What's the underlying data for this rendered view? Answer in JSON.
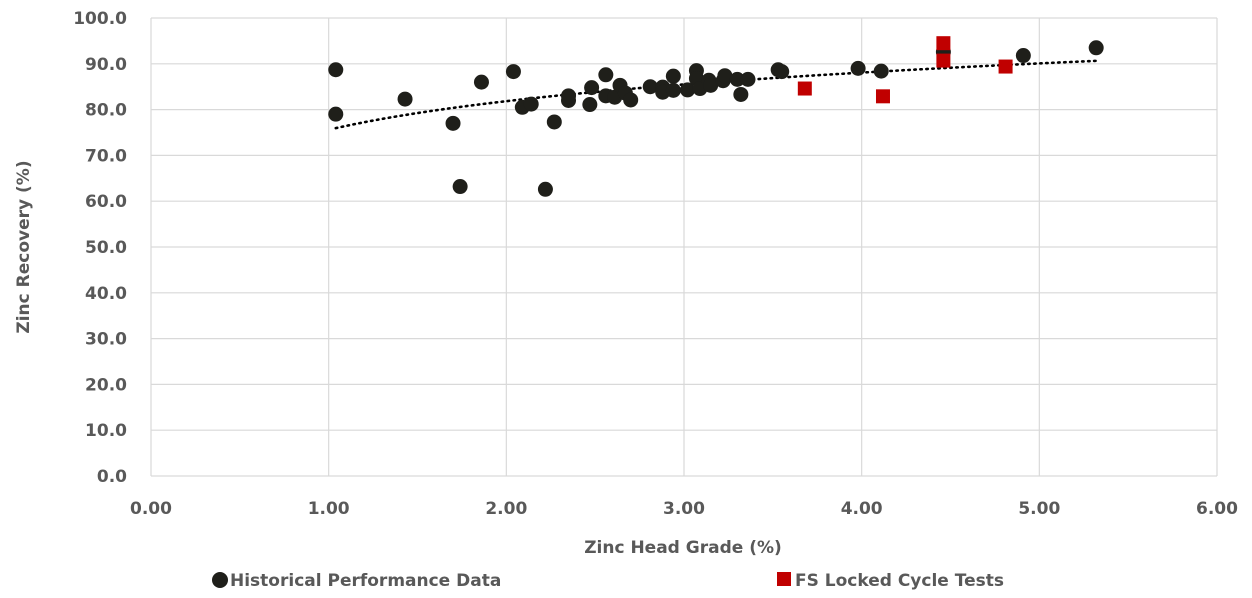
{
  "chart_data": {
    "type": "scatter",
    "xlabel": "Zinc Head Grade (%)",
    "ylabel": "Zinc Recovery (%)",
    "xlim": [
      0,
      6
    ],
    "ylim": [
      0,
      100
    ],
    "x_ticks": [
      "0.00",
      "1.00",
      "2.00",
      "3.00",
      "4.00",
      "5.00",
      "6.00"
    ],
    "y_ticks": [
      "0.0",
      "10.0",
      "20.0",
      "30.0",
      "40.0",
      "50.0",
      "60.0",
      "70.0",
      "80.0",
      "90.0",
      "100.0"
    ],
    "grid": true,
    "legend_position": "bottom",
    "series": [
      {
        "name": "Historical Performance Data",
        "marker": "circle",
        "color": "#1f1f1a",
        "points": [
          [
            1.04,
            88.7
          ],
          [
            1.04,
            79.0
          ],
          [
            1.43,
            82.3
          ],
          [
            1.7,
            77.0
          ],
          [
            1.74,
            63.2
          ],
          [
            1.86,
            86.0
          ],
          [
            2.04,
            88.3
          ],
          [
            2.09,
            80.5
          ],
          [
            2.14,
            81.2
          ],
          [
            2.22,
            62.6
          ],
          [
            2.27,
            77.3
          ],
          [
            2.35,
            82.0
          ],
          [
            2.35,
            83.0
          ],
          [
            2.47,
            81.1
          ],
          [
            2.48,
            84.8
          ],
          [
            2.56,
            87.6
          ],
          [
            2.56,
            83.0
          ],
          [
            2.61,
            82.7
          ],
          [
            2.64,
            85.3
          ],
          [
            2.67,
            83.6
          ],
          [
            2.7,
            82.1
          ],
          [
            2.81,
            85.0
          ],
          [
            2.88,
            84.9
          ],
          [
            2.88,
            83.8
          ],
          [
            2.94,
            87.3
          ],
          [
            2.94,
            84.2
          ],
          [
            3.02,
            84.3
          ],
          [
            3.07,
            88.5
          ],
          [
            3.07,
            86.8
          ],
          [
            3.09,
            84.6
          ],
          [
            3.14,
            86.4
          ],
          [
            3.15,
            85.3
          ],
          [
            3.22,
            86.3
          ],
          [
            3.23,
            87.4
          ],
          [
            3.3,
            86.6
          ],
          [
            3.32,
            83.3
          ],
          [
            3.36,
            86.6
          ],
          [
            3.53,
            88.7
          ],
          [
            3.55,
            88.3
          ],
          [
            3.98,
            89.0
          ],
          [
            4.11,
            88.4
          ],
          [
            4.46,
            92.6
          ],
          [
            4.91,
            91.8
          ],
          [
            5.32,
            93.5
          ]
        ]
      },
      {
        "name": "FS Locked Cycle Tests",
        "marker": "square",
        "color": "#c00000",
        "points": [
          [
            3.68,
            84.6
          ],
          [
            4.12,
            82.9
          ],
          [
            4.46,
            94.5
          ],
          [
            4.46,
            90.7
          ],
          [
            4.81,
            89.4
          ]
        ]
      }
    ],
    "trendline": {
      "style": "dotted",
      "color": "#000000",
      "type": "logarithmic",
      "x_range": [
        1.04,
        5.32
      ],
      "a": 75.6,
      "b": 9.0
    }
  }
}
